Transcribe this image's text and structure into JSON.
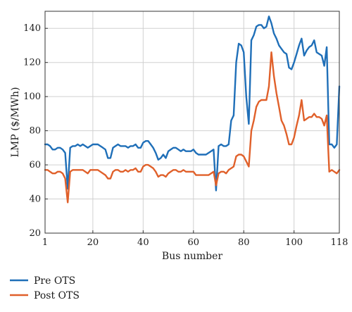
{
  "chart_data": {
    "type": "line",
    "xlabel": "Bus number",
    "ylabel": "LMP ($/MWh)",
    "xlim": [
      1,
      118
    ],
    "ylim": [
      20,
      150
    ],
    "x_ticks": [
      1,
      20,
      40,
      60,
      80,
      100,
      118
    ],
    "y_ticks": [
      20,
      40,
      60,
      80,
      100,
      120,
      140
    ],
    "grid": true,
    "legend_position": "bottom-left, below plot",
    "x": [
      1,
      2,
      3,
      4,
      5,
      6,
      7,
      8,
      9,
      10,
      11,
      12,
      13,
      14,
      15,
      16,
      17,
      18,
      19,
      20,
      21,
      22,
      23,
      24,
      25,
      26,
      27,
      28,
      29,
      30,
      31,
      32,
      33,
      34,
      35,
      36,
      37,
      38,
      39,
      40,
      41,
      42,
      43,
      44,
      45,
      46,
      47,
      48,
      49,
      50,
      51,
      52,
      53,
      54,
      55,
      56,
      57,
      58,
      59,
      60,
      61,
      62,
      63,
      64,
      65,
      66,
      67,
      68,
      69,
      70,
      71,
      72,
      73,
      74,
      75,
      76,
      77,
      78,
      79,
      80,
      81,
      82,
      83,
      84,
      85,
      86,
      87,
      88,
      89,
      90,
      91,
      92,
      93,
      94,
      95,
      96,
      97,
      98,
      99,
      100,
      101,
      102,
      103,
      104,
      105,
      106,
      107,
      108,
      109,
      110,
      111,
      112,
      113,
      114,
      115,
      116,
      117,
      118
    ],
    "series": [
      {
        "name": "Pre OTS",
        "color": "#1f6fb8",
        "values": [
          72,
          72,
          71,
          69,
          69,
          70,
          70,
          69,
          67,
          46,
          70,
          71,
          71,
          72,
          71,
          72,
          71,
          70,
          71,
          72,
          72,
          72,
          71,
          70,
          69,
          64,
          64,
          70,
          71,
          72,
          71,
          71,
          71,
          70,
          71,
          71,
          72,
          70,
          70,
          73,
          74,
          74,
          72,
          70,
          67,
          63,
          64,
          66,
          64,
          68,
          69,
          70,
          70,
          69,
          68,
          69,
          68,
          68,
          68,
          69,
          67,
          66,
          66,
          66,
          66,
          67,
          68,
          69,
          45,
          71,
          72,
          71,
          71,
          72,
          86,
          89,
          120,
          131,
          130,
          126,
          100,
          84,
          133,
          136,
          141,
          142,
          142,
          140,
          141,
          147,
          143,
          137,
          134,
          130,
          128,
          126,
          125,
          117,
          116,
          120,
          125,
          130,
          134,
          124,
          127,
          129,
          130,
          133,
          126,
          125,
          124,
          118,
          129,
          72,
          72,
          70,
          72,
          106
        ]
      },
      {
        "name": "Post OTS",
        "color": "#e0602a",
        "values": [
          57,
          57,
          56,
          55,
          55,
          56,
          56,
          55,
          52,
          38,
          56,
          57,
          57,
          57,
          57,
          57,
          56,
          55,
          57,
          57,
          57,
          57,
          56,
          55,
          54,
          52,
          52,
          56,
          57,
          57,
          56,
          56,
          57,
          56,
          57,
          57,
          58,
          56,
          56,
          59,
          60,
          60,
          59,
          58,
          56,
          53,
          54,
          54,
          53,
          55,
          56,
          57,
          57,
          56,
          56,
          57,
          56,
          56,
          56,
          56,
          54,
          54,
          54,
          54,
          54,
          54,
          55,
          56,
          48,
          55,
          56,
          56,
          55,
          57,
          58,
          59,
          65,
          66,
          66,
          65,
          62,
          59,
          80,
          86,
          94,
          97,
          98,
          98,
          98,
          106,
          126,
          112,
          102,
          94,
          86,
          83,
          78,
          72,
          72,
          76,
          83,
          89,
          98,
          86,
          87,
          88,
          88,
          90,
          88,
          88,
          87,
          83,
          89,
          56,
          57,
          56,
          55,
          57
        ]
      }
    ]
  }
}
